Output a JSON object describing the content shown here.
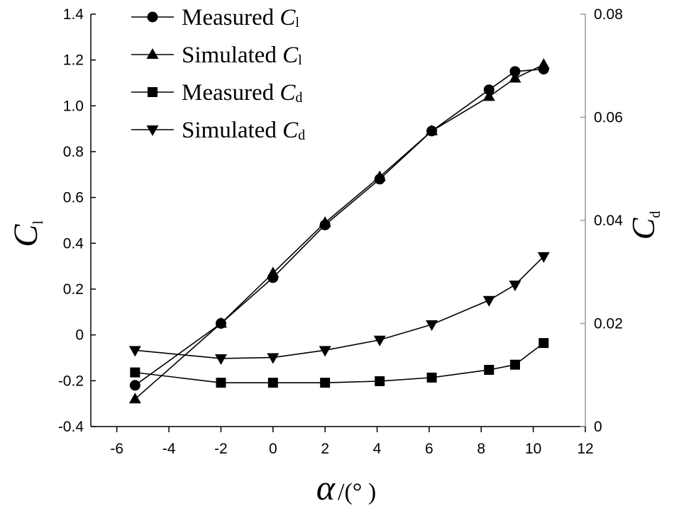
{
  "chart_data": {
    "type": "line",
    "title": "",
    "xlabel": {
      "symbol": "α",
      "unit": "/(°  )"
    },
    "ylabel_left": {
      "symbol": "C",
      "sub": "l"
    },
    "ylabel_right": {
      "symbol": "C",
      "sub": "d"
    },
    "xlim": [
      -7,
      12
    ],
    "ylim_left": [
      -0.4,
      1.4
    ],
    "ylim_right": [
      0,
      0.08
    ],
    "x_ticks": [
      "-6",
      "-4",
      "-2",
      "0",
      "2",
      "4",
      "6",
      "8",
      "10",
      "12"
    ],
    "y_left_ticks": [
      "-0.4",
      "-0.2",
      "0",
      "0.2",
      "0.4",
      "0.6",
      "0.8",
      "1.0",
      "1.2",
      "1.4"
    ],
    "y_right_ticks": [
      "0",
      "0.02",
      "0.04",
      "0.06",
      "0.08"
    ],
    "legend_position": "top-left",
    "series": [
      {
        "name": "Measured C",
        "sub": "l",
        "marker": "circle",
        "axis": "left",
        "x": [
          -5.3,
          -2.0,
          0.0,
          2.0,
          4.1,
          6.1,
          8.3,
          9.3,
          10.4
        ],
        "y": [
          -0.22,
          0.05,
          0.25,
          0.48,
          0.68,
          0.89,
          1.07,
          1.15,
          1.16
        ]
      },
      {
        "name": "Simulated C",
        "sub": "l",
        "marker": "triangle-up",
        "axis": "left",
        "x": [
          -5.3,
          -2.0,
          0.0,
          2.0,
          4.1,
          6.1,
          8.3,
          9.3,
          10.4
        ],
        "y": [
          -0.28,
          0.05,
          0.27,
          0.49,
          0.69,
          0.89,
          1.04,
          1.12,
          1.18
        ]
      },
      {
        "name": "Measured C",
        "sub": "d",
        "marker": "square",
        "axis": "right",
        "x": [
          -5.3,
          -2.0,
          0.0,
          2.0,
          4.1,
          6.1,
          8.3,
          9.3,
          10.4
        ],
        "y": [
          0.0105,
          0.0085,
          0.0085,
          0.0085,
          0.0088,
          0.0095,
          0.011,
          0.012,
          0.0162
        ]
      },
      {
        "name": "Simulated C",
        "sub": "d",
        "marker": "triangle-down",
        "axis": "right",
        "x": [
          -5.3,
          -2.0,
          0.0,
          2.0,
          4.1,
          6.1,
          8.3,
          9.3,
          10.4
        ],
        "y": [
          0.0148,
          0.0132,
          0.0134,
          0.0148,
          0.0168,
          0.0198,
          0.0245,
          0.0275,
          0.033
        ]
      }
    ]
  }
}
